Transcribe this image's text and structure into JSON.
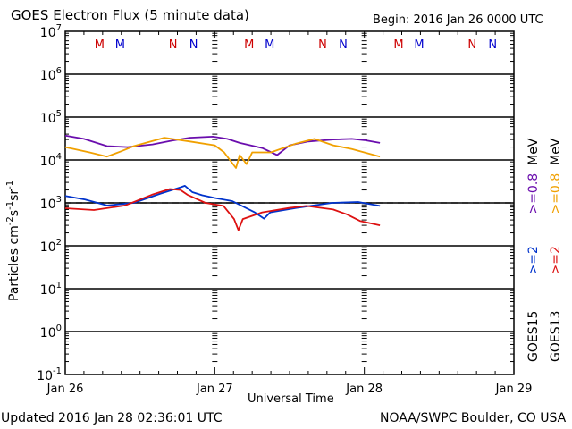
{
  "chart_data": {
    "type": "line",
    "title": "GOES Electron Flux (5 minute data)",
    "begin": "Begin: 2016 Jan 26 0000 UTC",
    "xlabel": "Universal Time",
    "ylabel_main": "Particles cm",
    "ylabel_parts": [
      {
        "t": "Particles cm",
        "sup": false
      },
      {
        "t": "-2",
        "sup": true
      },
      {
        "t": "s",
        "sup": false
      },
      {
        "t": "-1",
        "sup": true
      },
      {
        "t": "sr",
        "sup": false
      },
      {
        "t": "-1",
        "sup": true
      }
    ],
    "yscale": "log",
    "ylim_exponents": [
      -1,
      7
    ],
    "y_ticks": [
      {
        "base": "10",
        "exp": "7"
      },
      {
        "base": "10",
        "exp": "6"
      },
      {
        "base": "10",
        "exp": "5"
      },
      {
        "base": "10",
        "exp": "4"
      },
      {
        "base": "10",
        "exp": "3"
      },
      {
        "base": "10",
        "exp": "2"
      },
      {
        "base": "10",
        "exp": "1"
      },
      {
        "base": "10",
        "exp": "0"
      },
      {
        "base": "10",
        "exp": "-1"
      }
    ],
    "x_unit": "hours since 2016 Jan 26 0000 UTC",
    "xlim": [
      0,
      72
    ],
    "x_ticks": [
      {
        "label": "Jan 26",
        "hour": 0
      },
      {
        "label": "Jan 27",
        "hour": 24
      },
      {
        "label": "Jan 28",
        "hour": 48
      },
      {
        "label": "Jan 29",
        "hour": 72
      }
    ],
    "threshold": {
      "value": 1000,
      "style": "dashed"
    },
    "grid": "horizontal decade lines",
    "local_time_markers": [
      {
        "label": "M",
        "hour": 5.5,
        "color": "#cc0000"
      },
      {
        "label": "M",
        "hour": 8.8,
        "color": "#0000cc"
      },
      {
        "label": "N",
        "hour": 17.3,
        "color": "#cc0000"
      },
      {
        "label": "N",
        "hour": 20.6,
        "color": "#0000cc"
      },
      {
        "label": "M",
        "hour": 29.5,
        "color": "#cc0000"
      },
      {
        "label": "M",
        "hour": 32.8,
        "color": "#0000cc"
      },
      {
        "label": "N",
        "hour": 41.3,
        "color": "#cc0000"
      },
      {
        "label": "N",
        "hour": 44.6,
        "color": "#0000cc"
      },
      {
        "label": "M",
        "hour": 53.5,
        "color": "#cc0000"
      },
      {
        "label": "M",
        "hour": 56.8,
        "color": "#0000cc"
      },
      {
        "label": "N",
        "hour": 65.3,
        "color": "#cc0000"
      },
      {
        "label": "N",
        "hour": 68.6,
        "color": "#0000cc"
      }
    ],
    "series": [
      {
        "name": "GOES15 >=0.8 MeV",
        "satellite": "GOES15",
        "energy": ">=0.8 MeV",
        "color": "#6a0dad",
        "x": [
          0,
          3,
          6.7,
          10,
          14,
          17,
          20,
          23.7,
          26,
          28,
          31.6,
          34,
          36,
          39,
          43,
          46,
          48,
          50.5
        ],
        "y": [
          37000,
          31000,
          21000,
          20000,
          23000,
          28000,
          33000,
          35000,
          31000,
          25000,
          19000,
          13000,
          22000,
          27000,
          30000,
          31000,
          29000,
          25000
        ]
      },
      {
        "name": "GOES13 >=0.8 MeV",
        "satellite": "GOES13",
        "energy": ">=0.8 MeV",
        "color": "#f0a000",
        "x": [
          0,
          3.9,
          6.7,
          9,
          11,
          15.9,
          20,
          24,
          25.5,
          27.4,
          28,
          29.1,
          30,
          33,
          37,
          40,
          43,
          46,
          50.5
        ],
        "y": [
          20000,
          15000,
          12000,
          16000,
          21000,
          33000,
          27000,
          22000,
          15000,
          6500,
          13000,
          8000,
          15000,
          15000,
          24000,
          31000,
          22000,
          18000,
          12000
        ]
      },
      {
        "name": "GOES15 >=2 MeV",
        "satellite": "GOES15",
        "energy": ">=2 MeV",
        "color": "#0033cc",
        "x": [
          0,
          3.2,
          6.7,
          11,
          15.3,
          18.5,
          19.2,
          20.4,
          22,
          24,
          26.8,
          30.4,
          31.9,
          32.9,
          37,
          42.8,
          47,
          50.5
        ],
        "y": [
          1450,
          1200,
          870,
          1000,
          1650,
          2300,
          2500,
          1780,
          1500,
          1300,
          1100,
          600,
          430,
          600,
          760,
          1000,
          1050,
          850
        ]
      },
      {
        "name": "GOES13 >=2 MeV",
        "satellite": "GOES13",
        "energy": ">=2 MeV",
        "color": "#dd1111",
        "x": [
          0,
          4.6,
          9.6,
          13.9,
          16.8,
          18.5,
          19.6,
          22.5,
          25.4,
          27.1,
          27.8,
          28.5,
          31.6,
          35.9,
          38.7,
          43,
          45.2,
          47.3,
          50.5
        ],
        "y": [
          750,
          680,
          870,
          1550,
          2100,
          2000,
          1550,
          1000,
          850,
          420,
          230,
          420,
          600,
          760,
          850,
          700,
          540,
          380,
          300
        ]
      }
    ],
    "legend": [
      {
        "text": "GOES15",
        "color": "#000000"
      },
      {
        "text": ">=2",
        "color": "#0033cc"
      },
      {
        "text": ">=0.8",
        "color": "#6a0dad"
      },
      {
        "text": "MeV",
        "color": "#000000"
      },
      {
        "text": "GOES13",
        "color": "#000000"
      },
      {
        "text": ">=2",
        "color": "#dd1111"
      },
      {
        "text": ">=0.8",
        "color": "#f0a000"
      },
      {
        "text": "MeV",
        "color": "#000000"
      }
    ]
  },
  "footer": {
    "updated": "Updated 2016 Jan 28 02:36:01 UTC",
    "credit": "NOAA/SWPC Boulder, CO USA"
  }
}
